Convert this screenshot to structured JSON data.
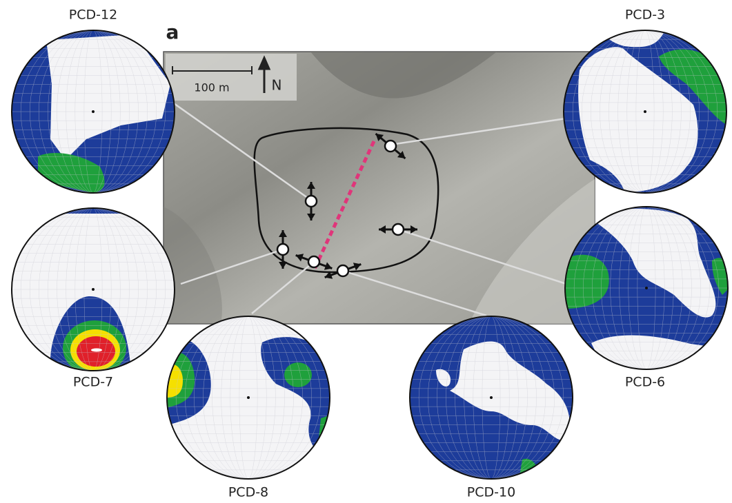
{
  "panel_label": "a",
  "scale_bar": {
    "label": "100 m"
  },
  "north_arrow": {
    "label": "N"
  },
  "stereonets": [
    {
      "label": "PCD-12"
    },
    {
      "label": "PCD-3"
    },
    {
      "label": "PCD-7"
    },
    {
      "label": "PCD-6"
    },
    {
      "label": "PCD-8"
    },
    {
      "label": "PCD-10"
    }
  ]
}
